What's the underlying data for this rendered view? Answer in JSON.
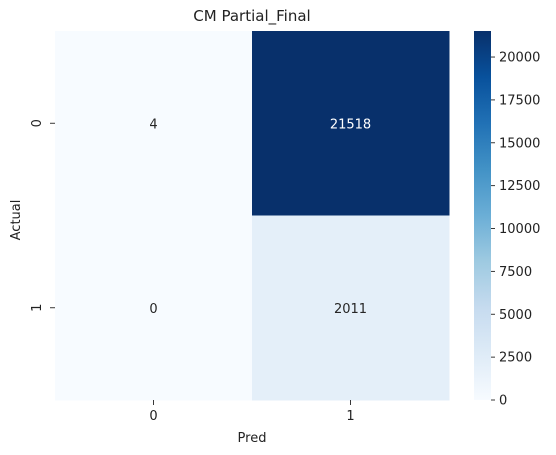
{
  "chart_data": {
    "type": "heatmap",
    "title": "CM Partial_Final",
    "xlabel": "Pred",
    "ylabel": "Actual",
    "x_categories": [
      "0",
      "1"
    ],
    "y_categories": [
      "0",
      "1"
    ],
    "values": [
      [
        4,
        21518
      ],
      [
        0,
        2011
      ]
    ],
    "colormap": "Blues",
    "colorbar": {
      "min": 0,
      "max": 21518,
      "ticks": [
        0,
        2500,
        5000,
        7500,
        10000,
        12500,
        15000,
        17500,
        20000
      ]
    },
    "colors": {
      "low": "#f7fbff",
      "high": "#08306b"
    }
  }
}
